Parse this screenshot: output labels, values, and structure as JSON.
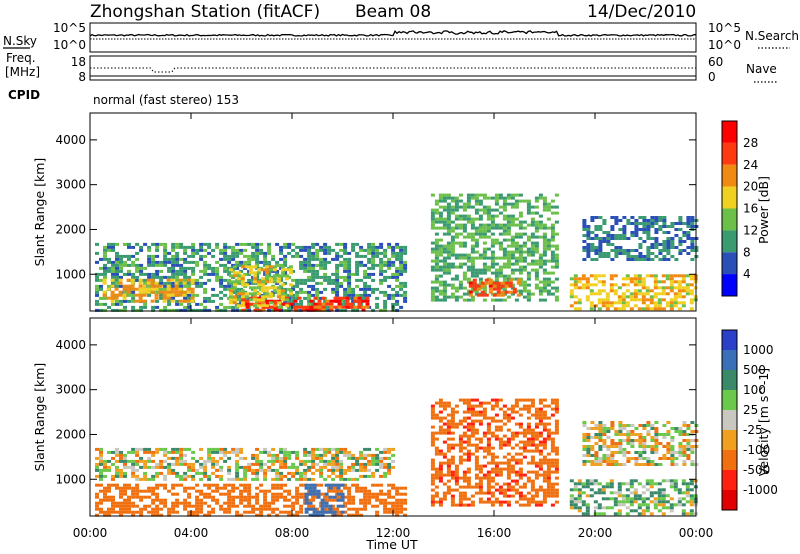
{
  "header": {
    "station": "Zhongshan Station (fitACF)",
    "beam": "Beam 08",
    "date": "14/Dec/2010"
  },
  "status_panels": {
    "nsky_label": "N.Sky",
    "nsearch_label": "N.Search",
    "freq_label_line1": "Freq.",
    "freq_label_line2": "[MHz]",
    "nave_label": "Nave",
    "cpid_label": "CPID",
    "cpid_value": "normal (fast stereo) 153",
    "noise_left_ticks": [
      "10^5",
      "10^0"
    ],
    "noise_right_ticks": [
      "10^5",
      "10^0"
    ],
    "freq_left_ticks": [
      "18",
      "8"
    ],
    "nave_right_ticks": [
      "60",
      "0"
    ]
  },
  "colors": {
    "power_scale": [
      "#0000ff",
      "#2a50b8",
      "#3a9a70",
      "#6cc04a",
      "#f0d020",
      "#f08a10",
      "#ff3a10",
      "#ff0000"
    ],
    "velocity_scale": [
      "#2a40c8",
      "#3a70b8",
      "#3a8a6a",
      "#6ac84a",
      "#c8c8c0",
      "#f0a020",
      "#f07010",
      "#ff2010",
      "#e00000"
    ]
  },
  "chart_data": [
    {
      "type": "heatmap",
      "panel": "power",
      "ylabel": "Slant Range [km]",
      "xlabel": "Time UT",
      "x_ticks": [
        "00:00",
        "04:00",
        "08:00",
        "12:00",
        "16:00",
        "20:00",
        "00:00"
      ],
      "x_range_hours": [
        0,
        24
      ],
      "y_ticks": [
        "1000",
        "2000",
        "3000",
        "4000"
      ],
      "ylim": [
        180,
        4600
      ],
      "colorbar": {
        "label": "Power [dB]",
        "ticks": [
          "4",
          "8",
          "12",
          "16",
          "20",
          "24",
          "28"
        ],
        "range": [
          0,
          32
        ]
      },
      "echo_regions": [
        {
          "t0": 0.2,
          "t1": 12.5,
          "r0": 200,
          "r1": 1700,
          "value": 10
        },
        {
          "t0": 0.5,
          "t1": 4.0,
          "r0": 400,
          "r1": 900,
          "value": 20
        },
        {
          "t0": 6.0,
          "t1": 11.0,
          "r0": 200,
          "r1": 500,
          "value": 27
        },
        {
          "t0": 5.5,
          "t1": 8.0,
          "r0": 300,
          "r1": 1200,
          "value": 18
        },
        {
          "t0": 13.5,
          "t1": 18.5,
          "r0": 400,
          "r1": 2800,
          "value": 12
        },
        {
          "t0": 15.0,
          "t1": 17.0,
          "r0": 500,
          "r1": 900,
          "value": 25
        },
        {
          "t0": 19.5,
          "t1": 24.0,
          "r0": 1300,
          "r1": 2300,
          "value": 8
        },
        {
          "t0": 19.0,
          "t1": 24.0,
          "r0": 200,
          "r1": 1000,
          "value": 19
        }
      ]
    },
    {
      "type": "heatmap",
      "panel": "velocity",
      "ylabel": "Slant Range [km]",
      "xlabel": "Time UT",
      "x_ticks": [
        "00:00",
        "04:00",
        "08:00",
        "12:00",
        "16:00",
        "20:00",
        "00:00"
      ],
      "x_range_hours": [
        0,
        24
      ],
      "y_ticks": [
        "1000",
        "2000",
        "3000",
        "4000"
      ],
      "ylim": [
        180,
        4600
      ],
      "colorbar": {
        "label": "Velocity [m s^-1]",
        "ticks": [
          "1000",
          "500",
          "100",
          "25",
          "-25",
          "-100",
          "-500",
          "-1000"
        ]
      },
      "echo_regions": [
        {
          "t0": 0.2,
          "t1": 12.5,
          "r0": 200,
          "r1": 900,
          "value": -300
        },
        {
          "t0": 0.2,
          "t1": 12.0,
          "r0": 1000,
          "r1": 1700,
          "value": 0
        },
        {
          "t0": 8.5,
          "t1": 10.0,
          "r0": 200,
          "r1": 900,
          "value": 800
        },
        {
          "t0": 13.5,
          "t1": 18.5,
          "r0": 400,
          "r1": 2800,
          "value": -400
        },
        {
          "t0": 19.5,
          "t1": 24.0,
          "r0": 1300,
          "r1": 2300,
          "value": 0
        },
        {
          "t0": 19.0,
          "t1": 24.0,
          "r0": 200,
          "r1": 1000,
          "value": 80
        }
      ]
    }
  ]
}
